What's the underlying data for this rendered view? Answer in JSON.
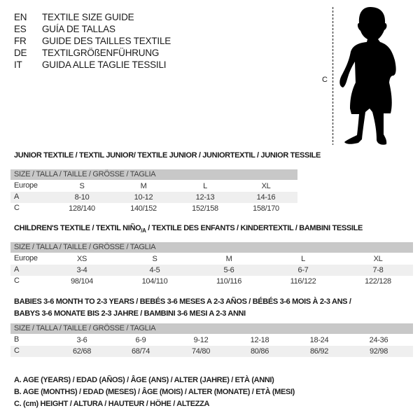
{
  "languages": [
    {
      "code": "EN",
      "text": "TEXTILE SIZE GUIDE"
    },
    {
      "code": "ES",
      "text": "GUÍA DE TALLAS"
    },
    {
      "code": "FR",
      "text": "GUIDE DES TAILLES TEXTILE"
    },
    {
      "code": "DE",
      "text": "TEXTILGRÖßENFÜHRUNG"
    },
    {
      "code": "IT",
      "text": "GUIDA ALLE TAGLIE TESSILI"
    }
  ],
  "figure": {
    "measure_label": "C"
  },
  "junior": {
    "title": "JUNIOR TEXTILE / TEXTIL JUNIOR/ TEXTILE JUNIOR / JUNIORTEXTIL / JUNIOR TESSILE",
    "header": "SIZE / TALLA / TAILLE / GRÖSSE / TAGLIA",
    "rows": [
      {
        "label": "Europe",
        "values": [
          "S",
          "M",
          "L",
          "XL"
        ]
      },
      {
        "label": "A",
        "values": [
          "8-10",
          "10-12",
          "12-13",
          "14-16"
        ]
      },
      {
        "label": "C",
        "values": [
          "128/140",
          "140/152",
          "152/158",
          "158/170"
        ]
      }
    ]
  },
  "children": {
    "title_main": "CHILDREN'S TEXTILE / TEXTIL NIÑO",
    "title_sub": "/A",
    "title_rest": " / TEXTILE DES ENFANTS / KINDERTEXTIL / BAMBINI TESSILE",
    "header": "SIZE / TALLA / TAILLE / GRÖSSE / TAGLIA",
    "rows": [
      {
        "label": "Europe",
        "values": [
          "XS",
          "S",
          "M",
          "L",
          "XL"
        ]
      },
      {
        "label": "A",
        "values": [
          "3-4",
          "4-5",
          "5-6",
          "6-7",
          "7-8"
        ]
      },
      {
        "label": "C",
        "values": [
          "98/104",
          "104/110",
          "110/116",
          "116/122",
          "122/128"
        ]
      }
    ]
  },
  "babies": {
    "title_line1": "BABIES 3-6 MONTH TO 2-3 YEARS / BEBÉS 3-6 MESES A 2-3 AÑOS / BÉBÉS 3-6 MOIS À 2-3 ANS /",
    "title_line2": "BABYS 3-6 MONATE BIS 2-3 JAHRE / BAMBINI 3-6 MESI A 2-3 ANNI",
    "header": "SIZE / TALLA / TAILLE / GRÖSSE / TAGLIA",
    "rows": [
      {
        "label": "B",
        "values": [
          "3-6",
          "6-9",
          "9-12",
          "12-18",
          "18-24",
          "24-36"
        ]
      },
      {
        "label": "C",
        "values": [
          "62/68",
          "68/74",
          "74/80",
          "80/86",
          "86/92",
          "92/98"
        ]
      }
    ]
  },
  "legend": [
    "A. AGE (YEARS) / EDAD (AÑOS) / ÂGE (ANS) / ALTER (JAHRE) / ETÀ (ANNI)",
    "B. AGE (MONTHS) / EDAD (MESES) / ÂGE (MOIS) / ALTER (MONATE) / ETÀ (MESI)",
    "C. (cm) HEIGHT / ALTURA / HAUTEUR / HÖHE / ALTEZZA"
  ],
  "colors": {
    "header_bg": "#c8c8c8",
    "shade_bg": "#efefef",
    "text": "#1a1a1a"
  }
}
